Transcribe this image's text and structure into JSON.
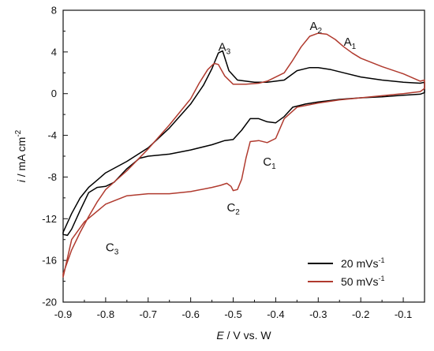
{
  "chart_data": {
    "type": "line",
    "title": "",
    "xlabel": {
      "var": "E",
      "rest": " / V vs. W"
    },
    "ylabel": {
      "var": "i",
      "rest": " / mA cm",
      "sup": "-2"
    },
    "xlim": [
      -0.9,
      -0.05
    ],
    "ylim": [
      -20,
      8
    ],
    "xticks": [
      -0.9,
      -0.8,
      -0.7,
      -0.6,
      -0.5,
      -0.4,
      -0.3,
      -0.2,
      -0.1
    ],
    "xtick_labels": [
      "-0.9",
      "-0.8",
      "-0.7",
      "-0.6",
      "-0.5",
      "-0.4",
      "-0.3",
      "-0.2",
      "-0.1"
    ],
    "yticks": [
      -20,
      -16,
      -12,
      -8,
      -4,
      0,
      4,
      8
    ],
    "ytick_labels": [
      "-20",
      "-16",
      "-12",
      "-8",
      "-4",
      "0",
      "4",
      "8"
    ],
    "grid": false,
    "legend": {
      "position": "bottom-right",
      "entries": [
        {
          "label": "20 mVs",
          "sup": "-1",
          "color": "#000000"
        },
        {
          "label": "50 mVs",
          "sup": "-1",
          "color": "#b03a2e"
        }
      ]
    },
    "annotations": [
      {
        "main": "A",
        "sub": "3",
        "x": -0.535,
        "y": 4.1
      },
      {
        "main": "A",
        "sub": "2",
        "x": -0.32,
        "y": 6.1
      },
      {
        "main": "A",
        "sub": "1",
        "x": -0.24,
        "y": 4.6
      },
      {
        "main": "C",
        "sub": "1",
        "x": -0.43,
        "y": -6.9
      },
      {
        "main": "C",
        "sub": "2",
        "x": -0.515,
        "y": -11.3
      },
      {
        "main": "C",
        "sub": "3",
        "x": -0.8,
        "y": -15.1
      }
    ],
    "series": [
      {
        "color": "#000000",
        "x": [
          -0.9,
          -0.88,
          -0.86,
          -0.84,
          -0.82,
          -0.8,
          -0.75,
          -0.7,
          -0.65,
          -0.6,
          -0.57,
          -0.55,
          -0.535,
          -0.525,
          -0.51,
          -0.49,
          -0.45,
          -0.42,
          -0.38,
          -0.35,
          -0.32,
          -0.3,
          -0.27,
          -0.24,
          -0.2,
          -0.15,
          -0.1,
          -0.06,
          -0.05,
          -0.05,
          -0.06,
          -0.1,
          -0.15,
          -0.2,
          -0.25,
          -0.3,
          -0.33,
          -0.36,
          -0.38,
          -0.4,
          -0.42,
          -0.44,
          -0.46,
          -0.48,
          -0.5,
          -0.52,
          -0.55,
          -0.6,
          -0.65,
          -0.7,
          -0.72,
          -0.75,
          -0.78,
          -0.8,
          -0.82,
          -0.84,
          -0.86,
          -0.88,
          -0.89,
          -0.9
        ],
        "y": [
          -13.3,
          -11.5,
          -10.0,
          -9.0,
          -8.3,
          -7.6,
          -6.5,
          -5.2,
          -3.3,
          -1.0,
          0.8,
          2.4,
          3.9,
          4.1,
          2.2,
          1.3,
          1.1,
          1.1,
          1.3,
          2.2,
          2.5,
          2.5,
          2.3,
          2.0,
          1.6,
          1.3,
          1.1,
          1.0,
          1.1,
          0.1,
          -0.05,
          -0.15,
          -0.3,
          -0.4,
          -0.55,
          -0.8,
          -1.0,
          -1.3,
          -2.2,
          -2.8,
          -2.7,
          -2.4,
          -2.4,
          -3.5,
          -4.4,
          -4.5,
          -4.9,
          -5.4,
          -5.8,
          -6.0,
          -6.2,
          -7.2,
          -8.5,
          -8.9,
          -9.0,
          -9.5,
          -11.2,
          -13.0,
          -13.6,
          -13.5
        ]
      },
      {
        "color": "#b03a2e",
        "x": [
          -0.9,
          -0.88,
          -0.86,
          -0.84,
          -0.82,
          -0.8,
          -0.75,
          -0.7,
          -0.65,
          -0.6,
          -0.58,
          -0.56,
          -0.545,
          -0.535,
          -0.52,
          -0.5,
          -0.47,
          -0.44,
          -0.42,
          -0.38,
          -0.36,
          -0.34,
          -0.32,
          -0.3,
          -0.28,
          -0.26,
          -0.24,
          -0.22,
          -0.2,
          -0.15,
          -0.1,
          -0.06,
          -0.05,
          -0.05,
          -0.06,
          -0.1,
          -0.15,
          -0.2,
          -0.25,
          -0.3,
          -0.35,
          -0.38,
          -0.4,
          -0.42,
          -0.44,
          -0.46,
          -0.47,
          -0.48,
          -0.49,
          -0.5,
          -0.505,
          -0.515,
          -0.53,
          -0.55,
          -0.6,
          -0.65,
          -0.7,
          -0.75,
          -0.8,
          -0.85,
          -0.88,
          -0.9
        ],
        "y": [
          -17.3,
          -15.0,
          -13.3,
          -11.8,
          -10.4,
          -9.2,
          -7.4,
          -5.3,
          -3.0,
          -0.5,
          1.0,
          2.3,
          2.9,
          2.8,
          1.7,
          0.9,
          0.9,
          1.0,
          1.2,
          2.0,
          3.2,
          4.5,
          5.5,
          5.8,
          5.7,
          5.2,
          4.5,
          3.9,
          3.4,
          2.6,
          1.9,
          1.2,
          1.3,
          0.5,
          0.2,
          0.0,
          -0.2,
          -0.4,
          -0.6,
          -0.9,
          -1.3,
          -2.4,
          -4.3,
          -4.7,
          -4.5,
          -4.6,
          -6.2,
          -8.2,
          -9.2,
          -9.3,
          -8.9,
          -8.6,
          -8.8,
          -9.0,
          -9.4,
          -9.6,
          -9.6,
          -9.8,
          -10.6,
          -12.3,
          -14.0,
          -17.6
        ]
      }
    ]
  }
}
